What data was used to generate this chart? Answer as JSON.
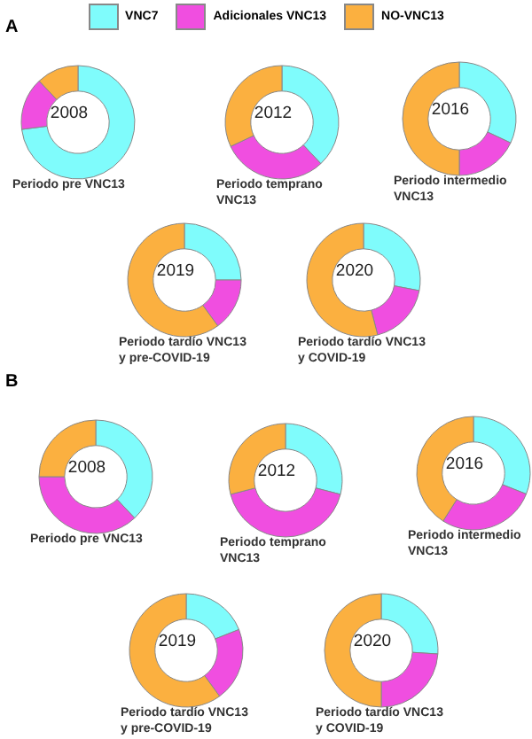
{
  "chart_data": [
    {
      "type": "donut",
      "title": "2008",
      "subtitle": "Periodo pre VNC13",
      "annotations": [
        "A"
      ],
      "legend": "top",
      "categories": [
        "VNC7",
        "Adicionales VNC13",
        "NO-VNC13"
      ],
      "colors": [
        "#7ffcfc",
        "#f04ee0",
        "#fbb040"
      ],
      "values": [
        73,
        15,
        12
      ]
    },
    {
      "type": "donut",
      "title": "2012",
      "subtitle": "Periodo temprano VNC13",
      "categories": [
        null,
        null,
        null
      ],
      "colors": [
        "#7ffcfc",
        "#f04ee0",
        "#fbb040"
      ],
      "values": [
        38,
        30,
        32
      ]
    },
    {
      "type": "donut",
      "title": "2016",
      "subtitle": "Periodo intermedio VNC13",
      "categories": [
        null,
        null,
        null
      ],
      "colors": [
        "#7ffcfc",
        "#f04ee0",
        "#fbb040"
      ],
      "values": [
        32,
        18,
        50
      ]
    },
    {
      "type": "donut",
      "title": "2019",
      "subtitle": "Periodo tardío VNC13 y pre-COVID-19",
      "categories": [
        null,
        null,
        null
      ],
      "colors": [
        "#7ffcfc",
        "#f04ee0",
        "#fbb040"
      ],
      "values": [
        25,
        15,
        60
      ]
    },
    {
      "type": "donut",
      "title": "2020",
      "subtitle": "Periodo tardío VNC13 y COVID-19",
      "categories": [
        null,
        null,
        null
      ],
      "colors": [
        "#7ffcfc",
        "#f04ee0",
        "#fbb040"
      ],
      "values": [
        28,
        18,
        54
      ]
    },
    {
      "type": "donut",
      "title": "2008",
      "subtitle": "Periodo pre VNC13",
      "annotations": [
        "B"
      ],
      "categories": [
        null,
        null,
        null
      ],
      "colors": [
        "#7ffcfc",
        "#f04ee0",
        "#fbb040"
      ],
      "values": [
        38,
        37,
        25
      ]
    },
    {
      "type": "donut",
      "title": "2012",
      "subtitle": "Periodo temprano VNC13",
      "categories": [
        null,
        null,
        null
      ],
      "colors": [
        "#7ffcfc",
        "#f04ee0",
        "#fbb040"
      ],
      "values": [
        29,
        42,
        29
      ]
    },
    {
      "type": "donut",
      "title": "2016",
      "subtitle": "Periodo intermedio VNC13",
      "categories": [
        null,
        null,
        null
      ],
      "colors": [
        "#7ffcfc",
        "#f04ee0",
        "#fbb040"
      ],
      "values": [
        31,
        28,
        41
      ]
    },
    {
      "type": "donut",
      "title": "2019",
      "subtitle": "Periodo tardío VNC13 y pre-COVID-19",
      "categories": [
        null,
        null,
        null
      ],
      "colors": [
        "#7ffcfc",
        "#f04ee0",
        "#fbb040"
      ],
      "values": [
        19,
        21,
        60
      ]
    },
    {
      "type": "donut",
      "title": "2020",
      "subtitle": "Periodo tardío VNC13 y COVID-19",
      "categories": [
        null,
        null,
        null
      ],
      "colors": [
        "#7ffcfc",
        "#f04ee0",
        "#fbb040"
      ],
      "values": [
        26,
        24,
        50
      ]
    }
  ]
}
